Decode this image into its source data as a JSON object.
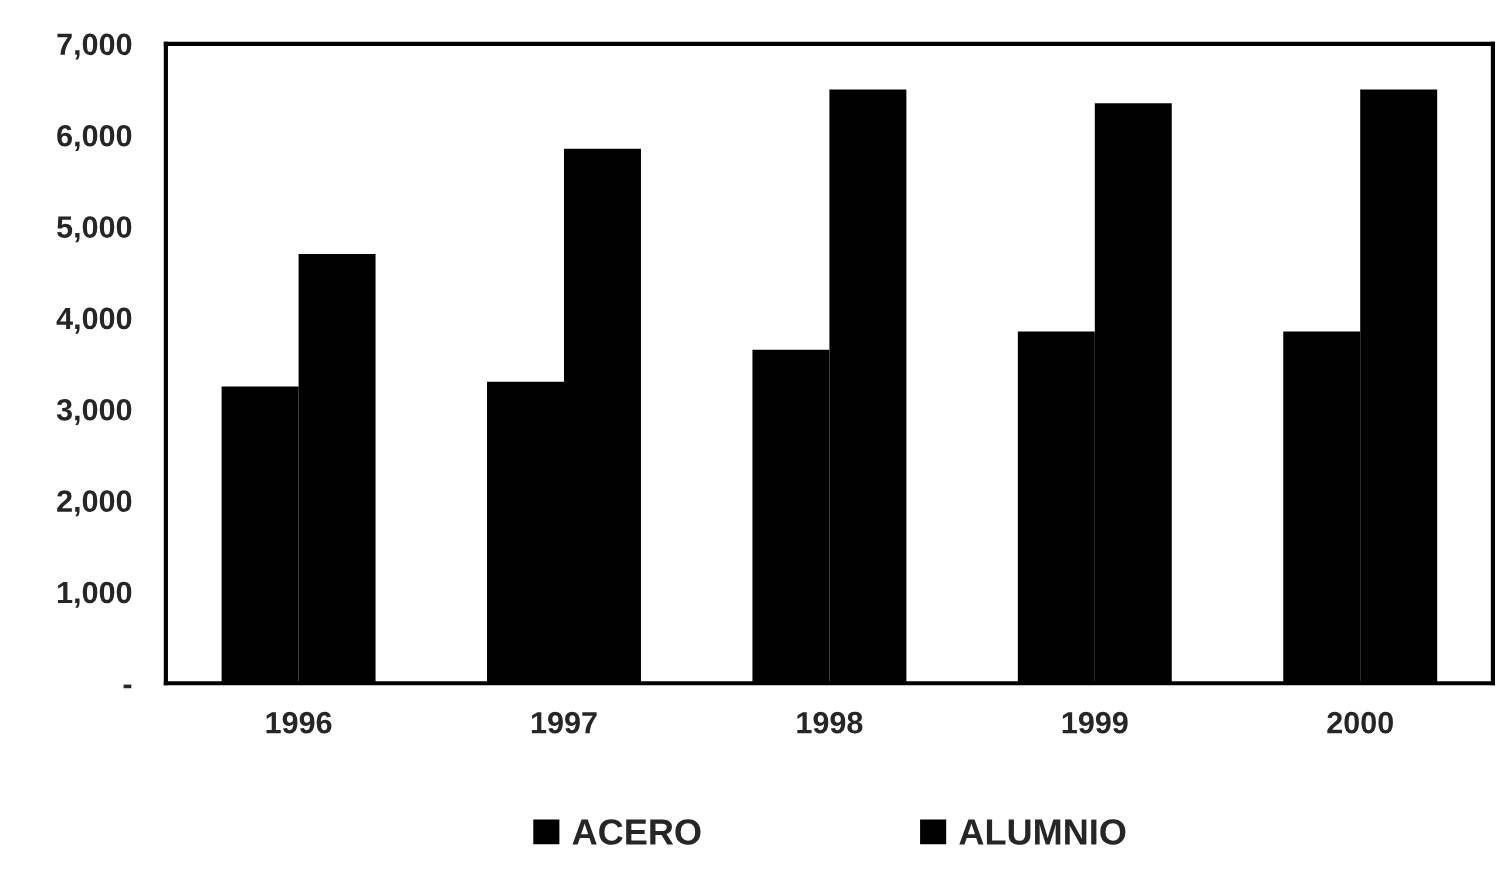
{
  "chart_data": {
    "type": "bar",
    "categories": [
      "1996",
      "1997",
      "1998",
      "1999",
      "2000"
    ],
    "series": [
      {
        "name": "ACERO",
        "color": "#000000",
        "values": [
          3250,
          3300,
          3650,
          3850,
          3850
        ]
      },
      {
        "name": "ALUMNIO",
        "color": "#000000",
        "values": [
          4700,
          5850,
          6500,
          6350,
          6500
        ]
      }
    ],
    "ylim": [
      0,
      7000
    ],
    "yticks": [
      {
        "value": 0,
        "label": "-"
      },
      {
        "value": 1000,
        "label": "1,000"
      },
      {
        "value": 2000,
        "label": "2,000"
      },
      {
        "value": 3000,
        "label": "3,000"
      },
      {
        "value": 4000,
        "label": "4,000"
      },
      {
        "value": 5000,
        "label": "5,000"
      },
      {
        "value": 6000,
        "label": "6,000"
      },
      {
        "value": 7000,
        "label": "7,000"
      }
    ],
    "grid": false,
    "legend": "bottom"
  }
}
